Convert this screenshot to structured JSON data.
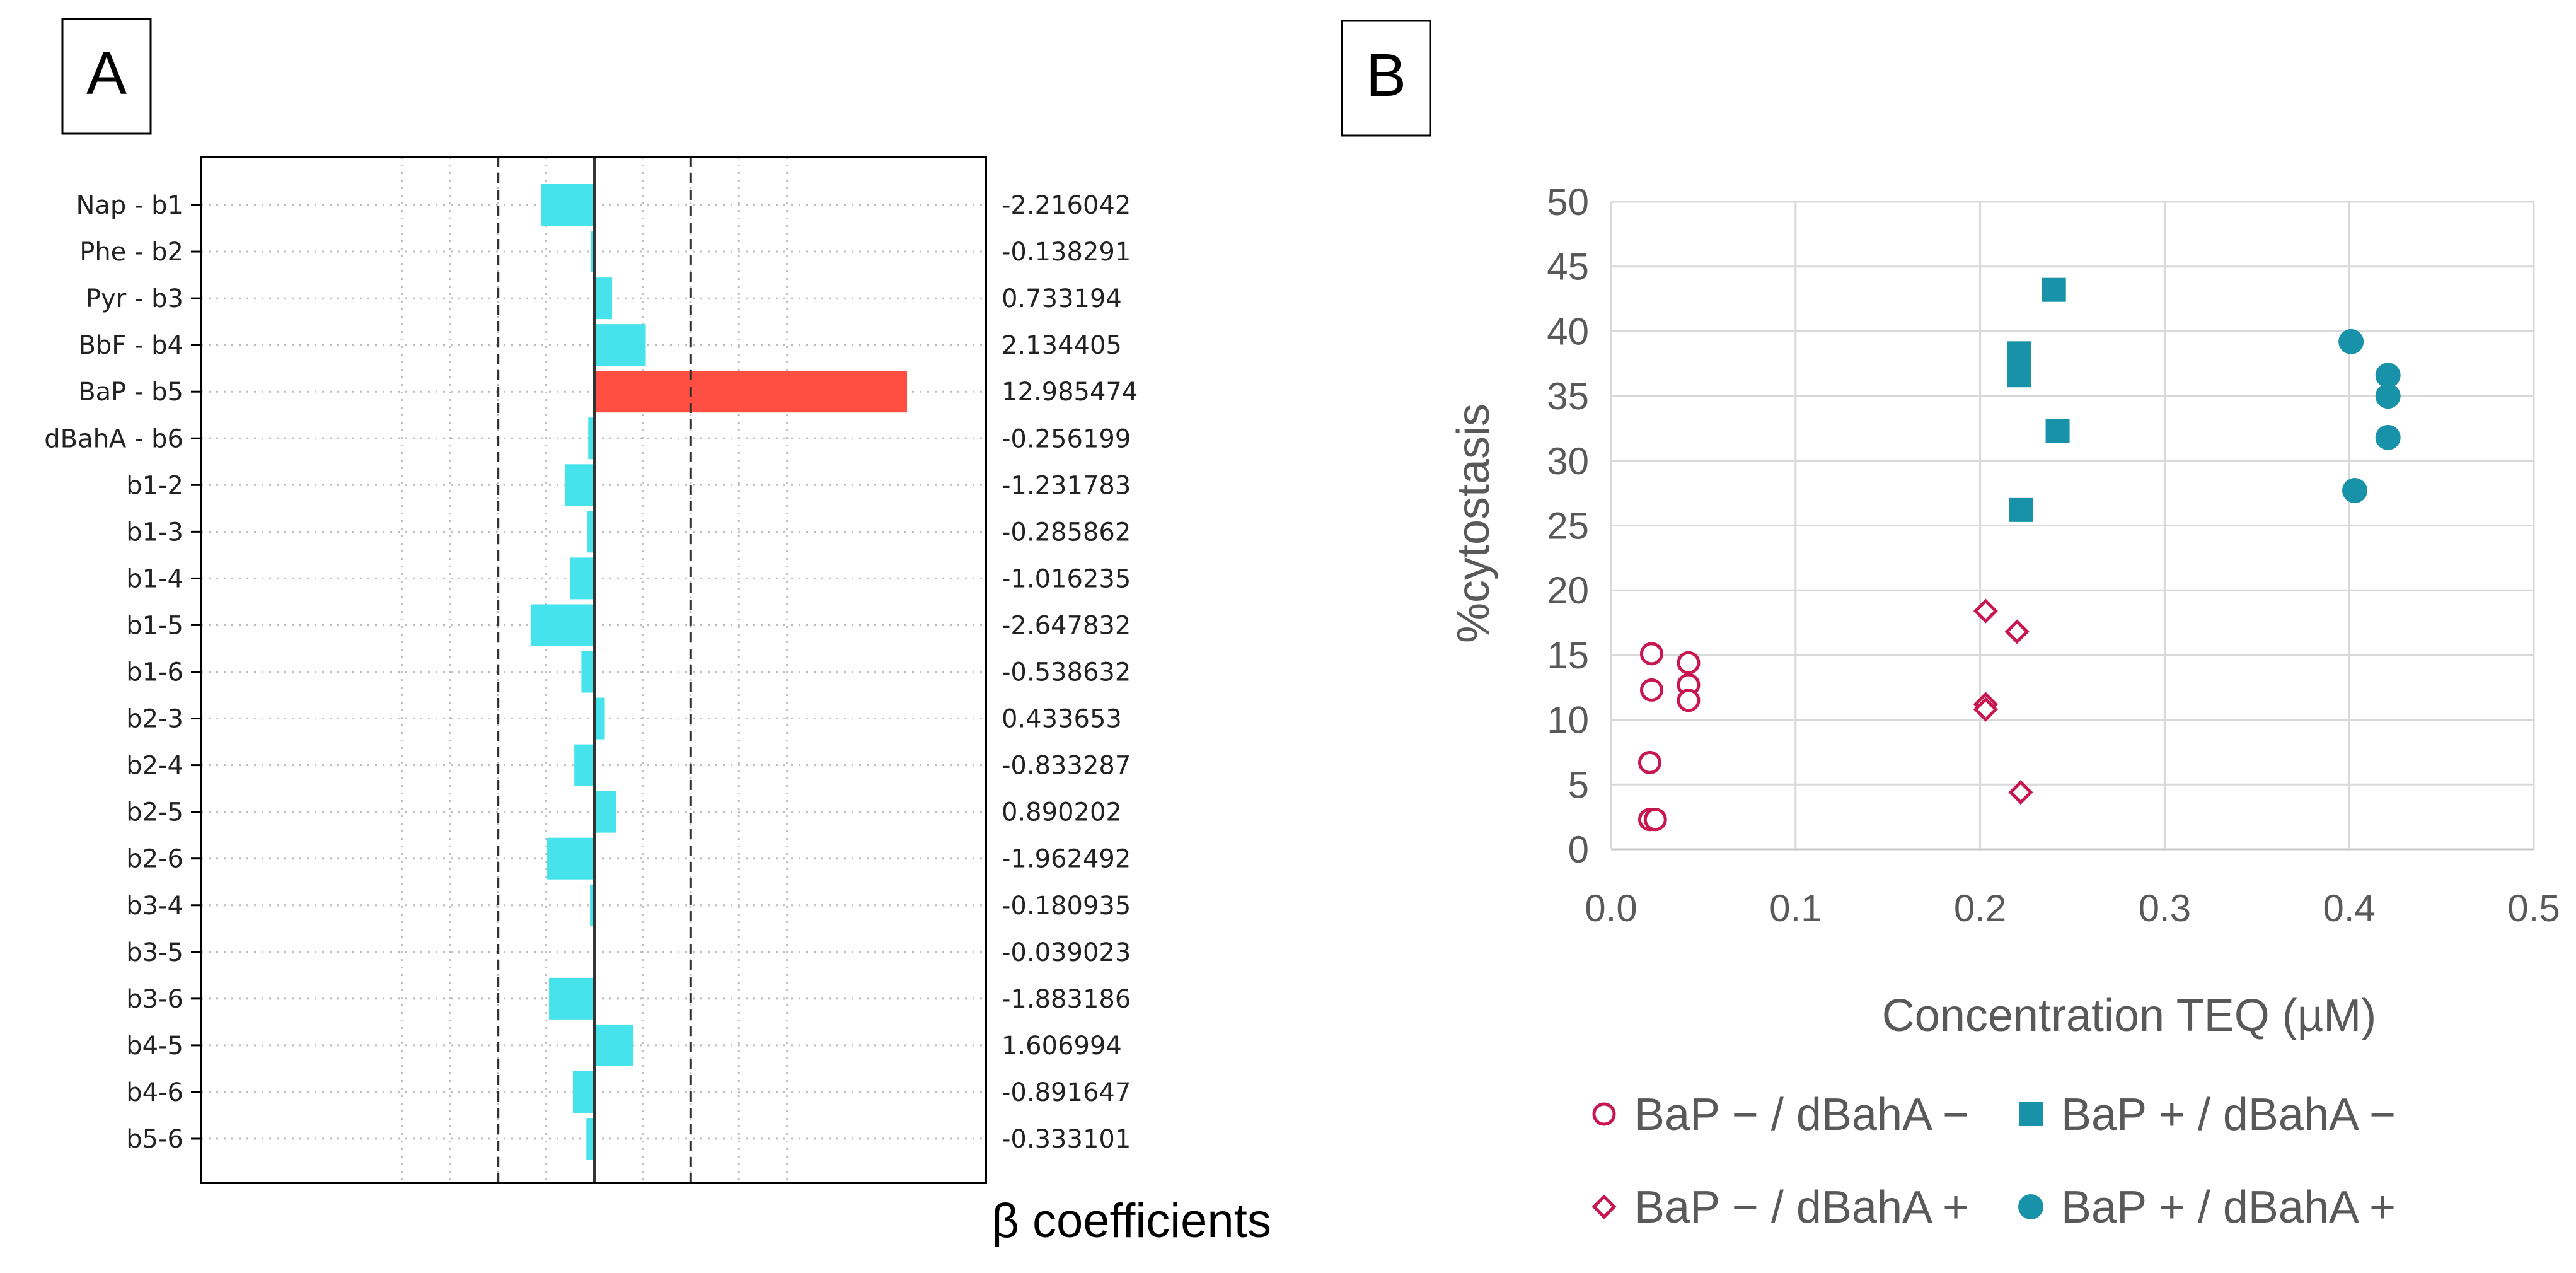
{
  "panel_a": {
    "label": "A",
    "chart_data": {
      "type": "bar",
      "orientation": "horizontal",
      "xlabel": "β coefficients",
      "xlim": [
        -8.2,
        8.2
      ],
      "reference_lines": [
        -4,
        0,
        4
      ],
      "categories": [
        "Nap - b1",
        "Phe - b2",
        "Pyr - b3",
        "BbF - b4",
        "BaP - b5",
        "dBahA - b6",
        "b1-2",
        "b1-3",
        "b1-4",
        "b1-5",
        "b1-6",
        "b2-3",
        "b2-4",
        "b2-5",
        "b2-6",
        "b3-4",
        "b3-5",
        "b3-6",
        "b4-5",
        "b4-6",
        "b5-6"
      ],
      "values": [
        -2.216042,
        -0.138291,
        0.733194,
        2.134405,
        12.985474,
        -0.256199,
        -1.231783,
        -0.285862,
        -1.016235,
        -2.647832,
        -0.538632,
        0.433653,
        -0.833287,
        0.890202,
        -1.962492,
        -0.180935,
        -0.039023,
        -1.883186,
        1.606994,
        -0.891647,
        -0.333101
      ],
      "value_labels": [
        "-2.216042",
        "-0.138291",
        "0.733194",
        "2.134405",
        "12.985474",
        "-0.256199",
        "-1.231783",
        "-0.285862",
        "-1.016235",
        "-2.647832",
        "-0.538632",
        "0.433653",
        "-0.833287",
        "0.890202",
        "-1.962492",
        "-0.180935",
        "-0.039023",
        "-1.883186",
        "1.606994",
        "-0.891647",
        "-0.333101"
      ],
      "highlight_index": 4,
      "colors": {
        "bar": "#47E3EC",
        "highlight": "#FF4F43"
      }
    }
  },
  "panel_b": {
    "label": "B",
    "chart_data": {
      "type": "scatter",
      "xlabel": "Concentration TEQ (µM)",
      "ylabel": "%cytostasis",
      "xlim": [
        0,
        0.5
      ],
      "ylim": [
        0,
        50
      ],
      "xticks": [
        0,
        0.1,
        0.2,
        0.3,
        0.4,
        0.5
      ],
      "xtick_labels": [
        "0.0",
        "0.1",
        "0.2",
        "0.3",
        "0.4",
        "0.5"
      ],
      "yticks": [
        0,
        5,
        10,
        15,
        20,
        25,
        30,
        35,
        40,
        45,
        50
      ],
      "ytick_labels": [
        "0",
        "5",
        "10",
        "15",
        "20",
        "25",
        "30",
        "35",
        "40",
        "45",
        "50"
      ],
      "grid": true,
      "legend_position": "bottom",
      "series": [
        {
          "name": "BaP − / dBahA −",
          "marker": "circle-open",
          "color": "#C8174F",
          "points": [
            [
              0.022,
              15.1
            ],
            [
              0.042,
              14.4
            ],
            [
              0.042,
              12.7
            ],
            [
              0.022,
              12.3
            ],
            [
              0.042,
              11.5
            ],
            [
              0.021,
              6.7
            ],
            [
              0.021,
              2.3
            ],
            [
              0.024,
              2.3
            ]
          ]
        },
        {
          "name": "BaP + / dBahA −",
          "marker": "square-filled",
          "color": "#1792A8",
          "points": [
            [
              0.24,
              43.2
            ],
            [
              0.221,
              38.3
            ],
            [
              0.221,
              36.6
            ],
            [
              0.242,
              32.3
            ],
            [
              0.222,
              26.2
            ]
          ]
        },
        {
          "name": "BaP − / dBahA +",
          "marker": "diamond-open",
          "color": "#C8174F",
          "points": [
            [
              0.203,
              18.4
            ],
            [
              0.22,
              16.8
            ],
            [
              0.203,
              11.2
            ],
            [
              0.203,
              10.8
            ],
            [
              0.222,
              4.4
            ]
          ]
        },
        {
          "name": "BaP + / dBahA +",
          "marker": "circle-filled",
          "color": "#1792A8",
          "points": [
            [
              0.401,
              39.2
            ],
            [
              0.421,
              36.6
            ],
            [
              0.421,
              35.0
            ],
            [
              0.421,
              31.8
            ],
            [
              0.403,
              27.7
            ]
          ]
        }
      ]
    }
  }
}
